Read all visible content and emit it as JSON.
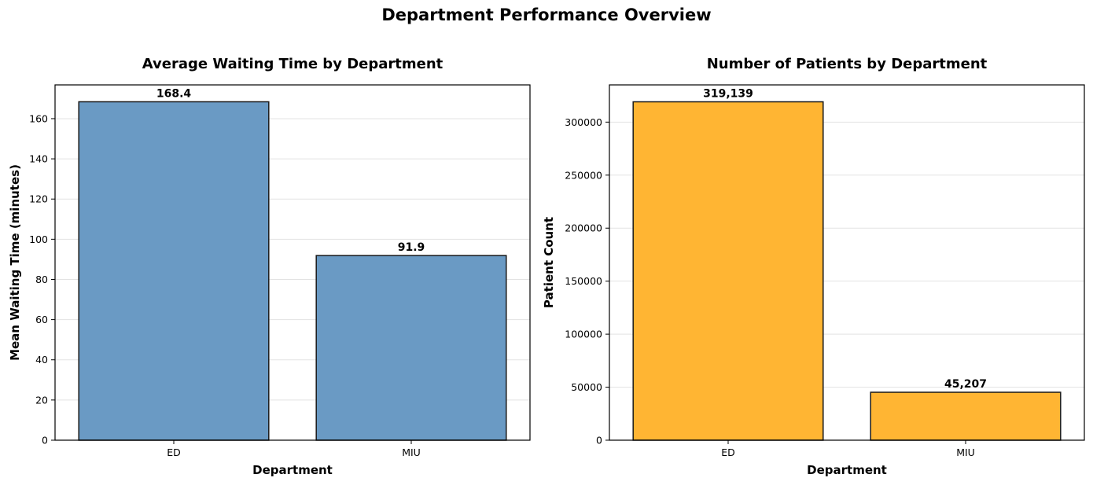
{
  "suptitle": "Department Performance Overview",
  "chart_data": [
    {
      "type": "bar",
      "title": "Average Waiting Time by Department",
      "xlabel": "Department",
      "ylabel": "Mean Waiting Time (minutes)",
      "categories": [
        "ED",
        "MIU"
      ],
      "values": [
        168.4,
        91.9
      ],
      "value_labels": [
        "168.4",
        "91.9"
      ],
      "ylim": [
        0,
        176.8
      ],
      "yticks": [
        0,
        20,
        40,
        60,
        80,
        100,
        120,
        140,
        160
      ],
      "ytick_labels": [
        "0",
        "20",
        "40",
        "60",
        "80",
        "100",
        "120",
        "140",
        "160"
      ],
      "bar_color": "#6a9ac4",
      "edge_color": "#1a1a1a",
      "grid": "y-axis only"
    },
    {
      "type": "bar",
      "title": "Number of Patients by Department",
      "xlabel": "Department",
      "ylabel": "Patient Count",
      "categories": [
        "ED",
        "MIU"
      ],
      "values": [
        319139,
        45207
      ],
      "value_labels": [
        "319,139",
        "45,207"
      ],
      "ylim": [
        0,
        335096
      ],
      "yticks": [
        0,
        50000,
        100000,
        150000,
        200000,
        250000,
        300000
      ],
      "ytick_labels": [
        "0",
        "50000",
        "100000",
        "150000",
        "200000",
        "250000",
        "300000"
      ],
      "bar_color": "#ffb533",
      "edge_color": "#1a1a1a",
      "grid": "y-axis only"
    }
  ]
}
